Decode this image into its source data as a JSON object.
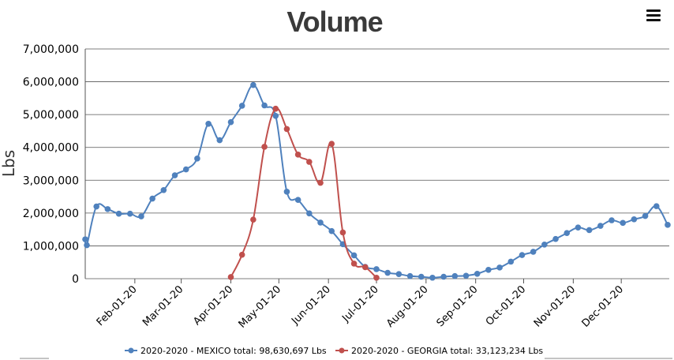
{
  "chart_data": {
    "type": "line",
    "title": "Volume",
    "ylabel": "Lbs",
    "xlabel": "",
    "ylim": [
      0,
      7000000
    ],
    "yticks": [
      "0",
      "1,000,000",
      "2,000,000",
      "3,000,000",
      "4,000,000",
      "5,000,000",
      "6,000,000",
      "7,000,000"
    ],
    "xlim": [
      "2020-01-01",
      "2020-12-31"
    ],
    "xticks": [
      {
        "date": "2020-02-01",
        "label": "Feb-01-20"
      },
      {
        "date": "2020-03-01",
        "label": "Mar-01-20"
      },
      {
        "date": "2020-04-01",
        "label": "Apr-01-20"
      },
      {
        "date": "2020-05-01",
        "label": "May-01-20"
      },
      {
        "date": "2020-06-01",
        "label": "Jun-01-20"
      },
      {
        "date": "2020-07-01",
        "label": "Jul-01-20"
      },
      {
        "date": "2020-08-01",
        "label": "Aug-01-20"
      },
      {
        "date": "2020-09-01",
        "label": "Sep-01-20"
      },
      {
        "date": "2020-10-01",
        "label": "Oct-01-20"
      },
      {
        "date": "2020-11-01",
        "label": "Nov-01-20"
      },
      {
        "date": "2020-12-01",
        "label": "Dec-01-20"
      }
    ],
    "grid": true,
    "legend_position": "bottom-center",
    "series": [
      {
        "name": "2020-2020 - MEXICO total: 98,630,697 Lbs",
        "color": "#4f81bd",
        "points": [
          [
            "2020-01-01",
            1200000
          ],
          [
            "2020-01-02",
            1020000
          ],
          [
            "2020-01-08",
            2200000
          ],
          [
            "2020-01-15",
            2120000
          ],
          [
            "2020-01-22",
            1980000
          ],
          [
            "2020-01-29",
            1980000
          ],
          [
            "2020-02-05",
            1900000
          ],
          [
            "2020-02-12",
            2440000
          ],
          [
            "2020-02-19",
            2700000
          ],
          [
            "2020-02-26",
            3150000
          ],
          [
            "2020-03-04",
            3330000
          ],
          [
            "2020-03-11",
            3660000
          ],
          [
            "2020-03-18",
            4720000
          ],
          [
            "2020-03-25",
            4220000
          ],
          [
            "2020-04-01",
            4770000
          ],
          [
            "2020-04-08",
            5270000
          ],
          [
            "2020-04-15",
            5900000
          ],
          [
            "2020-04-22",
            5280000
          ],
          [
            "2020-04-29",
            4960000
          ],
          [
            "2020-05-06",
            2650000
          ],
          [
            "2020-05-13",
            2400000
          ],
          [
            "2020-05-20",
            1990000
          ],
          [
            "2020-05-27",
            1710000
          ],
          [
            "2020-06-03",
            1450000
          ],
          [
            "2020-06-10",
            1050000
          ],
          [
            "2020-06-17",
            710000
          ],
          [
            "2020-06-24",
            360000
          ],
          [
            "2020-07-01",
            290000
          ],
          [
            "2020-07-08",
            180000
          ],
          [
            "2020-07-15",
            140000
          ],
          [
            "2020-07-22",
            80000
          ],
          [
            "2020-07-29",
            60000
          ],
          [
            "2020-08-05",
            30000
          ],
          [
            "2020-08-12",
            60000
          ],
          [
            "2020-08-19",
            80000
          ],
          [
            "2020-08-26",
            90000
          ],
          [
            "2020-09-02",
            150000
          ],
          [
            "2020-09-09",
            270000
          ],
          [
            "2020-09-16",
            340000
          ],
          [
            "2020-09-23",
            520000
          ],
          [
            "2020-09-30",
            720000
          ],
          [
            "2020-10-07",
            820000
          ],
          [
            "2020-10-14",
            1040000
          ],
          [
            "2020-10-21",
            1210000
          ],
          [
            "2020-10-28",
            1390000
          ],
          [
            "2020-11-04",
            1560000
          ],
          [
            "2020-11-11",
            1480000
          ],
          [
            "2020-11-18",
            1610000
          ],
          [
            "2020-11-25",
            1780000
          ],
          [
            "2020-12-02",
            1700000
          ],
          [
            "2020-12-09",
            1810000
          ],
          [
            "2020-12-16",
            1910000
          ],
          [
            "2020-12-23",
            2210000
          ],
          [
            "2020-12-30",
            1640000
          ]
        ]
      },
      {
        "name": "2020-2020 - GEORGIA total: 33,123,234 Lbs",
        "color": "#c0504d",
        "points": [
          [
            "2020-04-01",
            50000
          ],
          [
            "2020-04-08",
            730000
          ],
          [
            "2020-04-15",
            1800000
          ],
          [
            "2020-04-22",
            4020000
          ],
          [
            "2020-04-29",
            5180000
          ],
          [
            "2020-05-06",
            4560000
          ],
          [
            "2020-05-13",
            3780000
          ],
          [
            "2020-05-20",
            3560000
          ],
          [
            "2020-05-27",
            2920000
          ],
          [
            "2020-06-03",
            4110000
          ],
          [
            "2020-06-10",
            1410000
          ],
          [
            "2020-06-17",
            460000
          ],
          [
            "2020-06-24",
            350000
          ],
          [
            "2020-07-01",
            30000
          ]
        ]
      }
    ]
  },
  "toolbar": {
    "menu_icon": "hamburger-menu-icon"
  }
}
